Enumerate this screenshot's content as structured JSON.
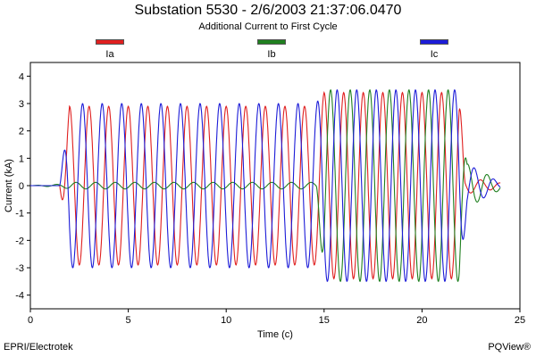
{
  "chart_data": {
    "type": "line",
    "title": "Substation 5530 - 2/6/2003 21:37:06.0470",
    "subtitle": "Additional Current to First Cycle",
    "xlabel": "Time (c)",
    "ylabel": "Current (kA)",
    "xlim": [
      0,
      25
    ],
    "ylim": [
      -4.5,
      4.5
    ],
    "xticks": [
      0,
      5,
      10,
      15,
      20,
      25
    ],
    "yticks": [
      -4,
      -3,
      -2,
      -1,
      0,
      1,
      2,
      3,
      4
    ],
    "grid": false,
    "legend_position": "top",
    "series": [
      {
        "name": "Ia",
        "color": "#e02020",
        "phase_deg": 90,
        "envelope": [
          {
            "t": 0.0,
            "amp": 0.0
          },
          {
            "t": 1.5,
            "amp": 0.0
          },
          {
            "t": 2.0,
            "amp": 2.9
          },
          {
            "t": 14.6,
            "amp": 2.9
          },
          {
            "t": 15.0,
            "amp": 3.4
          },
          {
            "t": 21.9,
            "amp": 3.4
          },
          {
            "t": 22.2,
            "amp": 0.3
          },
          {
            "t": 24.0,
            "amp": 0.1
          }
        ]
      },
      {
        "name": "Ib",
        "color": "#208020",
        "phase_deg": -30,
        "envelope": [
          {
            "t": 0.0,
            "amp": 0.0
          },
          {
            "t": 1.5,
            "amp": 0.05
          },
          {
            "t": 2.0,
            "amp": 0.12
          },
          {
            "t": 14.6,
            "amp": 0.12
          },
          {
            "t": 15.0,
            "amp": 3.5
          },
          {
            "t": 21.9,
            "amp": 3.5
          },
          {
            "t": 22.3,
            "amp": 0.8
          },
          {
            "t": 24.0,
            "amp": 0.15
          }
        ]
      },
      {
        "name": "Ic",
        "color": "#1c1cd8",
        "phase_deg": 210,
        "envelope": [
          {
            "t": 0.0,
            "amp": 0.0
          },
          {
            "t": 1.5,
            "amp": 0.0
          },
          {
            "t": 2.0,
            "amp": 3.0
          },
          {
            "t": 14.6,
            "amp": 3.0
          },
          {
            "t": 15.0,
            "amp": 3.5
          },
          {
            "t": 21.9,
            "amp": 3.5
          },
          {
            "t": 22.3,
            "amp": 0.8
          },
          {
            "t": 24.0,
            "amp": 0.1
          }
        ]
      }
    ]
  },
  "footer": {
    "left": "EPRI/Electrotek",
    "right": "PQView®"
  }
}
